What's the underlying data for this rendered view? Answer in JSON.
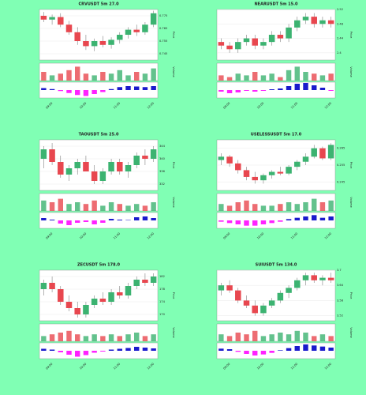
{
  "chart_data": [
    {
      "type": "candlestick",
      "title": "CRVUSDT 5m 27.0",
      "ylabel": "Price",
      "vol_label": "Volume",
      "up_color": "#3cb371",
      "down_color": "#e8474f",
      "macd_pos_color": "#1a1acc",
      "macd_neg_color": "#ff22ff",
      "categories": [
        null,
        "09:00",
        null,
        null,
        null,
        "10:00",
        null,
        null,
        null,
        "11:00",
        null,
        null,
        null,
        "12:00"
      ],
      "candles": [
        [
          0.775,
          0.778,
          0.77,
          0.772
        ],
        [
          0.772,
          0.776,
          0.768,
          0.774
        ],
        [
          0.774,
          0.777,
          0.766,
          0.768
        ],
        [
          0.768,
          0.771,
          0.76,
          0.762
        ],
        [
          0.762,
          0.766,
          0.752,
          0.755
        ],
        [
          0.755,
          0.76,
          0.748,
          0.751
        ],
        [
          0.751,
          0.757,
          0.747,
          0.755
        ],
        [
          0.755,
          0.759,
          0.75,
          0.752
        ],
        [
          0.752,
          0.758,
          0.749,
          0.756
        ],
        [
          0.756,
          0.762,
          0.753,
          0.76
        ],
        [
          0.76,
          0.766,
          0.757,
          0.764
        ],
        [
          0.764,
          0.768,
          0.759,
          0.762
        ],
        [
          0.762,
          0.77,
          0.76,
          0.768
        ],
        [
          0.768,
          0.779,
          0.766,
          0.777
        ]
      ],
      "ylim": [
        0.74,
        0.78
      ],
      "yticks": [
        0.745,
        0.755,
        0.765,
        0.775
      ],
      "volume": [
        5,
        3,
        4,
        6,
        8,
        4,
        3,
        5,
        4,
        6,
        3,
        5,
        4,
        7
      ],
      "volume_ylim": [
        0,
        10
      ],
      "macd": [
        0.001,
        0.0005,
        -0.0005,
        -0.0015,
        -0.0025,
        -0.003,
        -0.002,
        -0.001,
        0.0005,
        0.0015,
        0.002,
        0.0018,
        0.0015,
        0.002
      ],
      "macd_ylim": [
        -0.004,
        0.004
      ]
    },
    {
      "type": "candlestick",
      "title": "NEARUSDT 5m 15.0",
      "ylabel": "Price",
      "vol_label": "Volume",
      "up_color": "#3cb371",
      "down_color": "#e8474f",
      "macd_pos_color": "#1a1acc",
      "macd_neg_color": "#ff22ff",
      "categories": [
        null,
        "09:00",
        null,
        null,
        null,
        "10:00",
        null,
        null,
        null,
        "11:00",
        null,
        null,
        null,
        "12:00"
      ],
      "candles": [
        [
          2.43,
          2.44,
          2.41,
          2.42
        ],
        [
          2.42,
          2.43,
          2.4,
          2.41
        ],
        [
          2.41,
          2.44,
          2.4,
          2.43
        ],
        [
          2.43,
          2.45,
          2.42,
          2.44
        ],
        [
          2.44,
          2.45,
          2.41,
          2.42
        ],
        [
          2.42,
          2.44,
          2.41,
          2.43
        ],
        [
          2.43,
          2.46,
          2.42,
          2.45
        ],
        [
          2.45,
          2.46,
          2.43,
          2.44
        ],
        [
          2.44,
          2.48,
          2.43,
          2.47
        ],
        [
          2.47,
          2.5,
          2.46,
          2.49
        ],
        [
          2.49,
          2.51,
          2.48,
          2.5
        ],
        [
          2.5,
          2.51,
          2.47,
          2.48
        ],
        [
          2.48,
          2.5,
          2.47,
          2.49
        ],
        [
          2.49,
          2.5,
          2.47,
          2.48
        ]
      ],
      "ylim": [
        2.38,
        2.52
      ],
      "yticks": [
        2.4,
        2.44,
        2.48,
        2.52
      ],
      "volume": [
        3,
        2,
        4,
        3,
        5,
        3,
        4,
        2,
        6,
        8,
        5,
        4,
        3,
        4
      ],
      "volume_ylim": [
        0,
        10
      ],
      "macd": [
        -0.002,
        -0.004,
        -0.003,
        -0.001,
        -0.002,
        -0.001,
        0.001,
        0.002,
        0.005,
        0.008,
        0.009,
        0.006,
        0.003,
        -0.001
      ],
      "macd_ylim": [
        -0.01,
        0.01
      ]
    },
    {
      "type": "candlestick",
      "title": "TAOUSDT 5m 25.0",
      "ylabel": "Price",
      "vol_label": "Volume",
      "up_color": "#3cb371",
      "down_color": "#e8474f",
      "macd_pos_color": "#1a1acc",
      "macd_neg_color": "#ff22ff",
      "categories": [
        null,
        "09:00",
        null,
        null,
        null,
        "10:00",
        null,
        null,
        null,
        "11:00",
        null,
        null,
        null,
        "12:00"
      ],
      "candles": [
        [
          340,
          344,
          337,
          343
        ],
        [
          343,
          345,
          338,
          339
        ],
        [
          339,
          341,
          334,
          335
        ],
        [
          335,
          338,
          333,
          337
        ],
        [
          337,
          340,
          335,
          339
        ],
        [
          339,
          341,
          336,
          336
        ],
        [
          336,
          338,
          332,
          333
        ],
        [
          333,
          337,
          332,
          336
        ],
        [
          336,
          340,
          335,
          339
        ],
        [
          339,
          340,
          335,
          336
        ],
        [
          336,
          339,
          334,
          338
        ],
        [
          338,
          342,
          337,
          341
        ],
        [
          341,
          343,
          338,
          340
        ],
        [
          340,
          344,
          339,
          343
        ]
      ],
      "ylim": [
        330,
        346
      ],
      "yticks": [
        332,
        336,
        340,
        344
      ],
      "volume": [
        6,
        5,
        7,
        4,
        5,
        4,
        6,
        3,
        5,
        4,
        3,
        4,
        3,
        5
      ],
      "volume_ylim": [
        0,
        10
      ],
      "macd": [
        0.3,
        0.1,
        -0.4,
        -0.6,
        -0.3,
        -0.2,
        -0.5,
        -0.3,
        0.2,
        0.1,
        0.05,
        0.4,
        0.5,
        0.3
      ],
      "macd_ylim": [
        -1,
        1
      ]
    },
    {
      "type": "candlestick",
      "title": "USELESSUSDT 5m 17.0",
      "ylabel": "Price",
      "vol_label": "Volume",
      "up_color": "#3cb371",
      "down_color": "#e8474f",
      "macd_pos_color": "#1a1acc",
      "macd_neg_color": "#ff22ff",
      "categories": [
        null,
        "09:00",
        null,
        null,
        null,
        "10:00",
        null,
        null,
        null,
        "11:00",
        null,
        null,
        null,
        "12:00"
      ],
      "candles": [
        [
          0.258,
          0.262,
          0.255,
          0.26
        ],
        [
          0.26,
          0.261,
          0.254,
          0.256
        ],
        [
          0.256,
          0.258,
          0.25,
          0.252
        ],
        [
          0.252,
          0.254,
          0.246,
          0.248
        ],
        [
          0.248,
          0.251,
          0.244,
          0.246
        ],
        [
          0.246,
          0.25,
          0.244,
          0.249
        ],
        [
          0.249,
          0.252,
          0.247,
          0.251
        ],
        [
          0.251,
          0.254,
          0.249,
          0.25
        ],
        [
          0.25,
          0.255,
          0.249,
          0.254
        ],
        [
          0.254,
          0.258,
          0.252,
          0.257
        ],
        [
          0.257,
          0.262,
          0.255,
          0.26
        ],
        [
          0.26,
          0.267,
          0.259,
          0.265
        ],
        [
          0.265,
          0.266,
          0.258,
          0.259
        ],
        [
          0.259,
          0.268,
          0.258,
          0.267
        ]
      ],
      "ylim": [
        0.24,
        0.27
      ],
      "yticks": [
        0.245,
        0.255,
        0.265
      ],
      "volume": [
        4,
        3,
        5,
        6,
        4,
        3,
        3,
        4,
        5,
        4,
        5,
        7,
        5,
        6
      ],
      "volume_ylim": [
        0,
        10
      ],
      "macd": [
        -0.001,
        -0.002,
        -0.003,
        -0.004,
        -0.004,
        -0.003,
        -0.002,
        -0.001,
        0.001,
        0.002,
        0.003,
        0.004,
        0.002,
        0.003
      ],
      "macd_ylim": [
        -0.006,
        0.006
      ]
    },
    {
      "type": "candlestick",
      "title": "ZECUSDT 5m 178.0",
      "ylabel": "Price",
      "vol_label": "Volume",
      "up_color": "#3cb371",
      "down_color": "#e8474f",
      "macd_pos_color": "#1a1acc",
      "macd_neg_color": "#ff22ff",
      "categories": [
        null,
        "09:00",
        null,
        null,
        null,
        "10:00",
        null,
        null,
        null,
        "11:00",
        null,
        null,
        null,
        "12:00"
      ],
      "candles": [
        [
          178,
          181,
          176,
          180
        ],
        [
          180,
          182,
          177,
          178
        ],
        [
          178,
          179,
          173,
          174
        ],
        [
          174,
          176,
          171,
          172
        ],
        [
          172,
          174,
          169,
          170
        ],
        [
          170,
          174,
          169,
          173
        ],
        [
          173,
          176,
          172,
          175
        ],
        [
          175,
          177,
          173,
          174
        ],
        [
          174,
          178,
          173,
          177
        ],
        [
          177,
          179,
          175,
          176
        ],
        [
          176,
          180,
          175,
          179
        ],
        [
          179,
          182,
          178,
          181
        ],
        [
          181,
          183,
          179,
          180
        ],
        [
          180,
          183,
          179,
          182
        ]
      ],
      "ylim": [
        168,
        184
      ],
      "yticks": [
        170,
        174,
        178,
        182
      ],
      "volume": [
        3,
        4,
        5,
        6,
        4,
        3,
        4,
        3,
        4,
        3,
        4,
        5,
        3,
        4
      ],
      "volume_ylim": [
        0,
        10
      ],
      "macd": [
        0.5,
        0.3,
        -0.4,
        -1.0,
        -1.5,
        -1.1,
        -0.5,
        -0.2,
        0.3,
        0.5,
        0.7,
        1.0,
        0.8,
        0.6
      ],
      "macd_ylim": [
        -2,
        2
      ]
    },
    {
      "type": "candlestick",
      "title": "SUIUSDT 5m 134.0",
      "ylabel": "Price",
      "vol_label": "Volume",
      "up_color": "#3cb371",
      "down_color": "#e8474f",
      "macd_pos_color": "#1a1acc",
      "macd_neg_color": "#ff22ff",
      "categories": [
        null,
        "09:00",
        null,
        null,
        null,
        "10:00",
        null,
        null,
        null,
        "11:00",
        null,
        null,
        null,
        "12:00"
      ],
      "candles": [
        [
          3.62,
          3.65,
          3.6,
          3.64
        ],
        [
          3.64,
          3.66,
          3.61,
          3.62
        ],
        [
          3.62,
          3.63,
          3.57,
          3.58
        ],
        [
          3.58,
          3.6,
          3.55,
          3.56
        ],
        [
          3.56,
          3.58,
          3.52,
          3.53
        ],
        [
          3.53,
          3.57,
          3.52,
          3.56
        ],
        [
          3.56,
          3.59,
          3.55,
          3.58
        ],
        [
          3.58,
          3.62,
          3.57,
          3.61
        ],
        [
          3.61,
          3.64,
          3.59,
          3.63
        ],
        [
          3.63,
          3.67,
          3.62,
          3.66
        ],
        [
          3.66,
          3.69,
          3.64,
          3.68
        ],
        [
          3.68,
          3.69,
          3.65,
          3.66
        ],
        [
          3.66,
          3.68,
          3.64,
          3.67
        ],
        [
          3.67,
          3.69,
          3.65,
          3.66
        ]
      ],
      "ylim": [
        3.5,
        3.7
      ],
      "yticks": [
        3.52,
        3.58,
        3.64,
        3.7
      ],
      "volume": [
        4,
        3,
        5,
        4,
        6,
        3,
        4,
        5,
        4,
        6,
        5,
        3,
        4,
        3
      ],
      "volume_ylim": [
        0,
        10
      ],
      "macd": [
        0.004,
        0.003,
        -0.002,
        -0.006,
        -0.009,
        -0.007,
        -0.004,
        0.001,
        0.005,
        0.009,
        0.012,
        0.01,
        0.008,
        0.006
      ],
      "macd_ylim": [
        -0.015,
        0.015
      ]
    }
  ]
}
